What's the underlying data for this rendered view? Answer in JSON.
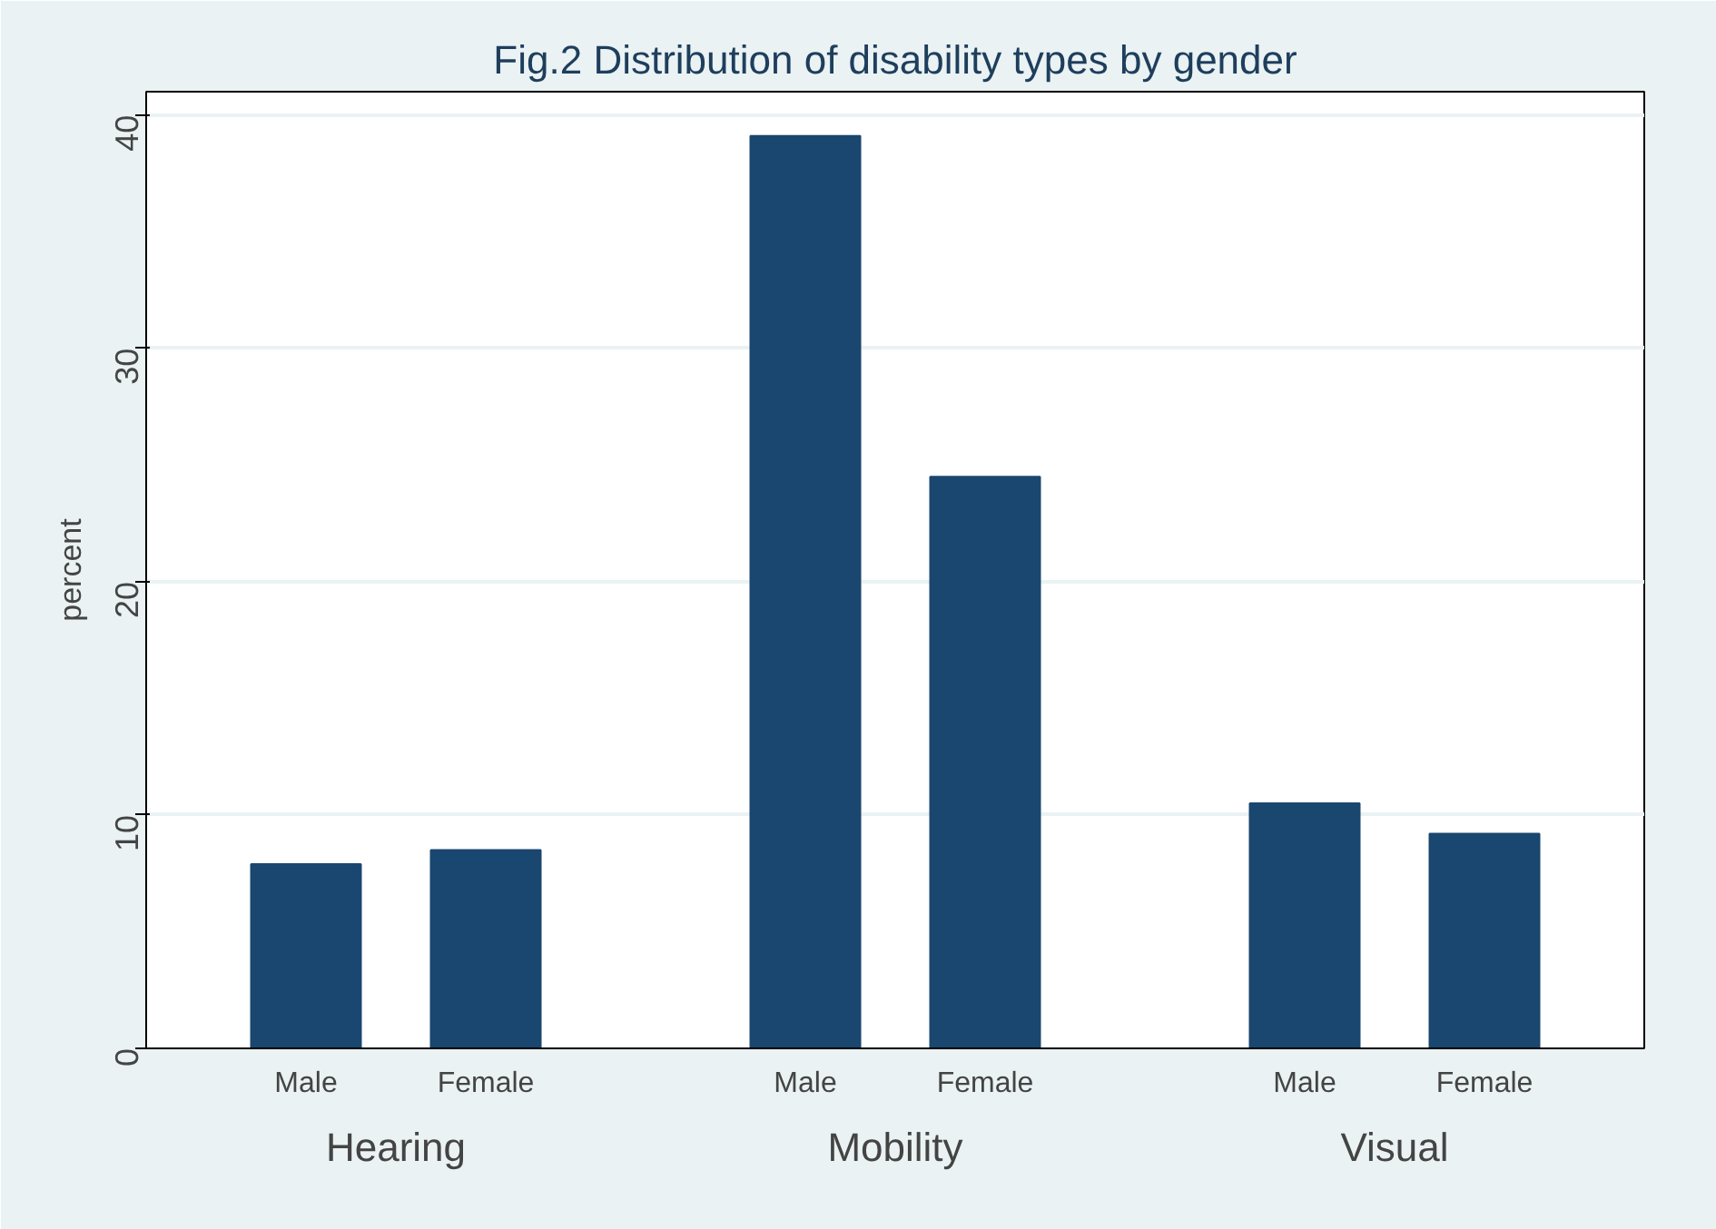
{
  "chart_data": {
    "type": "bar",
    "title": "Fig.2 Distribution of disability types by gender",
    "ylabel": "percent",
    "categories": [
      "Hearing",
      "Mobility",
      "Visual"
    ],
    "series": [
      {
        "name": "Male",
        "color": "#1a476f",
        "values": [
          7.9,
          39.1,
          10.5
        ]
      },
      {
        "name": "Female",
        "color": "#1a476f",
        "values": [
          8.5,
          24.5,
          9.2
        ]
      }
    ],
    "ylim": [
      0,
      41
    ],
    "yticks": [
      0,
      10,
      20,
      30,
      40
    ],
    "grid": "y"
  }
}
